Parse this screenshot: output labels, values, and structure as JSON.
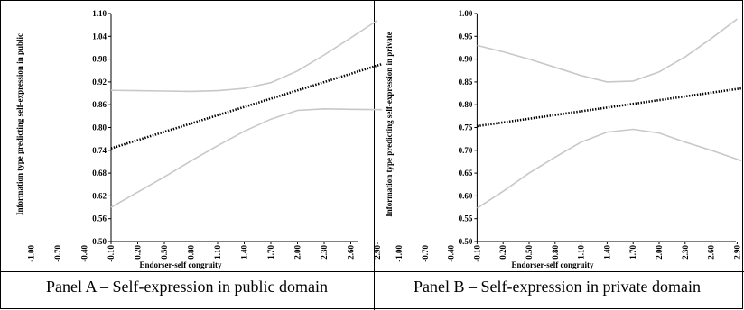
{
  "figure": {
    "border_color": "#000000"
  },
  "chart_data": [
    {
      "type": "line",
      "panel_caption": "Panel A – Self-expression in public domain",
      "xlabel": "Endorser-self congruity",
      "ylabel": "Information type predicting self-expression in public",
      "x_ticks": [
        "-1.00",
        "-0.70",
        "-0.40",
        "-0.10",
        "0.20",
        "0.50",
        "0.80",
        "1.10",
        "1.40",
        "1.70",
        "2.00",
        "2.30",
        "2.60",
        "2.90"
      ],
      "y_ticks": [
        "0.50",
        "0.56",
        "0.62",
        "0.68",
        "0.74",
        "0.80",
        "0.86",
        "0.92",
        "0.98",
        "1.04",
        "1.10"
      ],
      "xlim": [
        -1.09,
        3.01
      ],
      "ylim": [
        0.5,
        1.1
      ],
      "grid": false,
      "series": [
        {
          "role": "estimate",
          "style": "dotted",
          "color": "#000000",
          "x": [
            -0.1,
            2.95
          ],
          "y": [
            0.745,
            0.967
          ]
        },
        {
          "role": "upper-bound",
          "style": "solid",
          "color": "#c8c8c8",
          "x": [
            -0.1,
            0.2,
            0.5,
            0.8,
            1.1,
            1.4,
            1.7,
            2.0,
            2.3,
            2.6,
            2.9
          ],
          "y": [
            0.898,
            0.897,
            0.896,
            0.895,
            0.897,
            0.903,
            0.918,
            0.949,
            0.991,
            1.036,
            1.082
          ]
        },
        {
          "role": "lower-bound",
          "style": "solid",
          "color": "#c8c8c8",
          "x": [
            -0.1,
            0.2,
            0.5,
            0.8,
            1.1,
            1.4,
            1.7,
            2.0,
            2.3,
            2.6,
            2.95
          ],
          "y": [
            0.59,
            0.63,
            0.67,
            0.712,
            0.752,
            0.79,
            0.822,
            0.845,
            0.849,
            0.848,
            0.847
          ]
        }
      ]
    },
    {
      "type": "line",
      "panel_caption": "Panel B – Self-expression in private domain",
      "xlabel": "Endorser-self congruity",
      "ylabel": "Information type predicting self-expression in private",
      "x_ticks": [
        "-1.00",
        "-0.70",
        "-0.40",
        "-0.10",
        "0.20",
        "0.50",
        "0.80",
        "1.10",
        "1.40",
        "1.70",
        "2.00",
        "2.30",
        "2.60",
        "2.90"
      ],
      "y_ticks": [
        "0.50",
        "0.55",
        "0.60",
        "0.65",
        "0.70",
        "0.75",
        "0.80",
        "0.85",
        "0.90",
        "0.95",
        "1.00"
      ],
      "xlim": [
        -1.09,
        3.01
      ],
      "ylim": [
        0.5,
        1.0
      ],
      "grid": false,
      "series": [
        {
          "role": "estimate",
          "style": "dotted",
          "color": "#000000",
          "x": [
            -0.1,
            2.95
          ],
          "y": [
            0.753,
            0.836
          ]
        },
        {
          "role": "upper-bound",
          "style": "solid",
          "color": "#c8c8c8",
          "x": [
            -0.1,
            0.2,
            0.5,
            0.8,
            1.1,
            1.4,
            1.7,
            2.0,
            2.3,
            2.6,
            2.9
          ],
          "y": [
            0.93,
            0.916,
            0.9,
            0.882,
            0.864,
            0.85,
            0.852,
            0.872,
            0.905,
            0.945,
            0.988
          ]
        },
        {
          "role": "lower-bound",
          "style": "solid",
          "color": "#c8c8c8",
          "x": [
            -0.1,
            0.2,
            0.5,
            0.8,
            1.1,
            1.4,
            1.7,
            2.0,
            2.3,
            2.6,
            2.95
          ],
          "y": [
            0.573,
            0.61,
            0.65,
            0.685,
            0.718,
            0.74,
            0.746,
            0.738,
            0.718,
            0.7,
            0.677
          ]
        }
      ]
    }
  ]
}
